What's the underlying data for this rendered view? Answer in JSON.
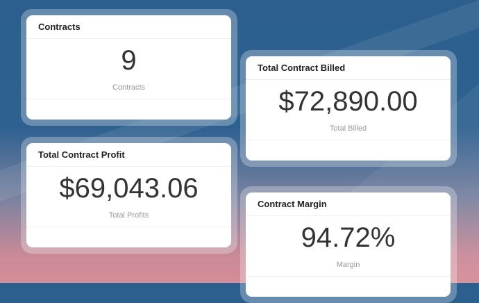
{
  "cards": [
    {
      "title": "Contracts",
      "value": "9",
      "label": "Contracts"
    },
    {
      "title": "Total Contract Profit",
      "value": "$69,043.06",
      "label": "Total Profits"
    },
    {
      "title": "Total Contract Billed",
      "value": "$72,890.00",
      "label": "Total Billed"
    },
    {
      "title": "Contract Margin",
      "value": "94.72%",
      "label": "Margin"
    }
  ]
}
